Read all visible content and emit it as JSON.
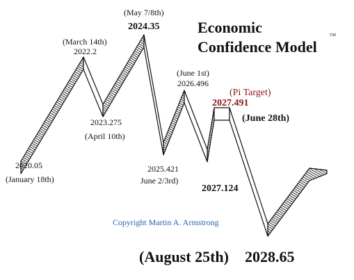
{
  "title": {
    "line1": "Economic",
    "line2": "Confidence Model",
    "trademark": "TM"
  },
  "labels": [
    {
      "date": "(January 18th)",
      "value": "2020.05"
    },
    {
      "date": "(March 14th)",
      "value": "2022.2"
    },
    {
      "date": "(April 10th)",
      "value": "2023.275"
    },
    {
      "date": "(May 7/8th)",
      "value": "2024.35"
    },
    {
      "date": "June 2/3rd)",
      "value": "2025.421"
    },
    {
      "date": "(June 1st)",
      "value": "2026.496"
    },
    {
      "value": "2027.124"
    },
    {
      "note": "(Pi Target)",
      "value": "2027.491",
      "date": "(June 28th)"
    },
    {
      "date": "(August 25th)",
      "value": "2028.65"
    }
  ],
  "copyright": "Copyright Martin A. Armstrong"
}
